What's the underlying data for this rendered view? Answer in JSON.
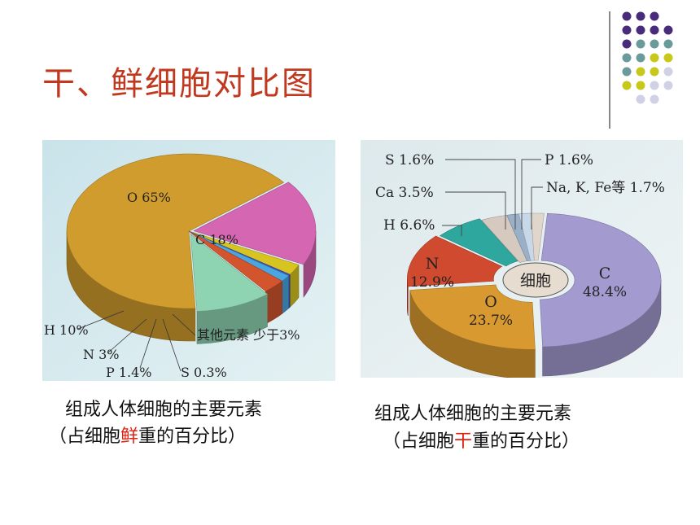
{
  "slide": {
    "title": "干、鲜细胞对比图"
  },
  "colors": {
    "title": "#c0391f",
    "highlight": "#e02010",
    "dot_purple": "#4a2a7a",
    "dot_teal": "#6a9a9a",
    "dot_yellow": "#c8c81a",
    "dot_lavender": "#d0d0e6"
  },
  "caption_fresh": {
    "line1": "组成人体细胞的主要元素",
    "line2_a": "（占细胞",
    "line2_hl": "鲜",
    "line2_b": "重的百分比）"
  },
  "caption_dry": {
    "line1": "组成人体细胞的主要元素",
    "line2_a": "（占细胞",
    "line2_hl": "干",
    "line2_b": "重的百分比）"
  },
  "chart_data": [
    {
      "type": "pie",
      "slices": [
        {
          "label": "O 65%",
          "value": 65,
          "color": "#d19c2e"
        },
        {
          "label": "C 18%",
          "value": 18,
          "color": "#d566b2"
        },
        {
          "label": "其他元素 少于3%",
          "value": 2.3,
          "color": "#d8c420"
        },
        {
          "label": "S 0.3%",
          "value": 0.3,
          "color": "#3c50c0"
        },
        {
          "label": "P 1.4%",
          "value": 1.4,
          "color": "#4aa6e0"
        },
        {
          "label": "N 3%",
          "value": 3,
          "color": "#d2552e"
        },
        {
          "label": "H 10%",
          "value": 10,
          "color": "#8fd4b2"
        }
      ]
    },
    {
      "type": "pie",
      "center_label": "细胞",
      "slices": [
        {
          "label": "C 48.4%",
          "value": 48.4,
          "color": "#a39ad0"
        },
        {
          "label": "O 23.7%",
          "value": 23.7,
          "color": "#d89a30"
        },
        {
          "label": "N 12.9%",
          "value": 12.9,
          "color": "#d04a30"
        },
        {
          "label": "H 6.6%",
          "value": 6.6,
          "color": "#2ea89e"
        },
        {
          "label": "Ca 3.5%",
          "value": 3.5,
          "color": "#d6cac0"
        },
        {
          "label": "S 1.6%",
          "value": 1.6,
          "color": "#9ab0c8"
        },
        {
          "label": "P 1.6%",
          "value": 1.6,
          "color": "#c8d8e8"
        },
        {
          "label": "Na, K, Fe等 1.7%",
          "value": 1.7,
          "color": "#e0d6cc"
        }
      ]
    }
  ]
}
